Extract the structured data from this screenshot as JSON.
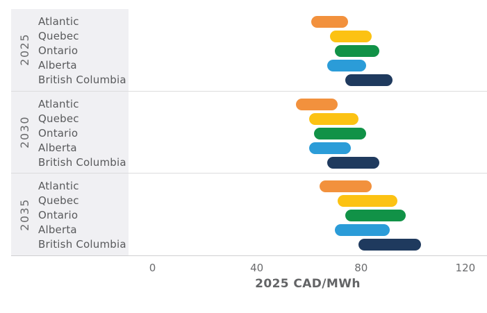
{
  "chart_data": {
    "type": "bar",
    "variant": "horizontal-range-pills",
    "title": "",
    "xlabel": "2025 CAD/MWh",
    "ylabel": "",
    "x_ticks": [
      0,
      40,
      80,
      120
    ],
    "xlim": [
      -9.2,
      128.3
    ],
    "grid": "off",
    "legend": "none",
    "regions": [
      "Atlantic",
      "Quebec",
      "Ontario",
      "Alberta",
      "British Columbia"
    ],
    "region_colors": [
      "#f2913d",
      "#fcc213",
      "#119247",
      "#2b9cd8",
      "#1f3a5e"
    ],
    "groups": [
      {
        "year": "2025",
        "ranges": [
          [
            61,
            75
          ],
          [
            68,
            84
          ],
          [
            70,
            87
          ],
          [
            67,
            82
          ],
          [
            74,
            92
          ]
        ]
      },
      {
        "year": "2030",
        "ranges": [
          [
            55,
            71
          ],
          [
            60,
            79
          ],
          [
            62,
            82
          ],
          [
            60,
            76
          ],
          [
            67,
            87
          ]
        ]
      },
      {
        "year": "2035",
        "ranges": [
          [
            64,
            84
          ],
          [
            71,
            94
          ],
          [
            74,
            97
          ],
          [
            70,
            91
          ],
          [
            79,
            103
          ]
        ]
      }
    ]
  },
  "axis": {
    "tick_labels": [
      "0",
      "40",
      "80",
      "120"
    ],
    "title": "2025 CAD/MWh"
  },
  "colors": {
    "panel_bg": "#f0f0f3",
    "divider": "#dcdcdd",
    "axis_line": "#cfcfd1",
    "label_text": "#58595b",
    "tick_text": "#6a6b6d",
    "year_text": "#6a6b6d",
    "axis_title_text": "#636466"
  }
}
